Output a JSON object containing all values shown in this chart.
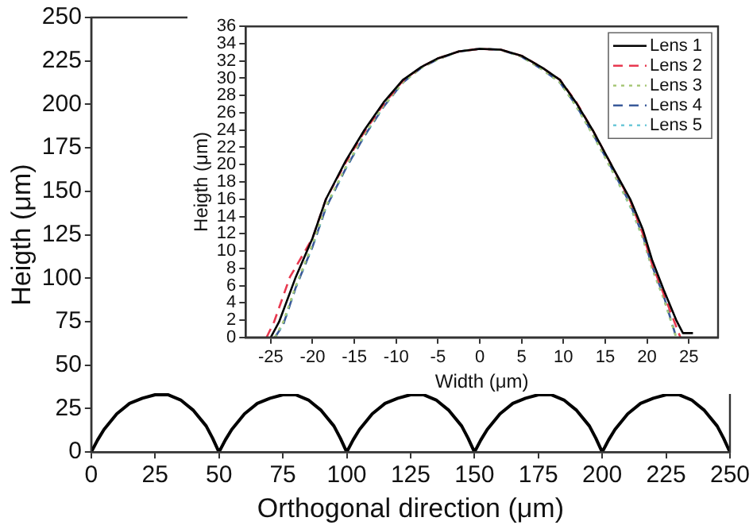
{
  "chart_data": [
    {
      "type": "line",
      "xlabel": "Orthogonal direction (μm)",
      "ylabel": "Heigth (μm)",
      "xlim": [
        0,
        250
      ],
      "ylim": [
        0,
        250
      ],
      "xticks": [
        0,
        25,
        50,
        75,
        100,
        125,
        150,
        175,
        200,
        225,
        250
      ],
      "yticks": [
        0,
        25,
        50,
        75,
        100,
        125,
        150,
        175,
        200,
        225,
        250
      ],
      "grid": false,
      "legend": false,
      "marker": "none",
      "line_style": "solid",
      "x": [
        0,
        2.5,
        5,
        10,
        15,
        20,
        25,
        30,
        35,
        40,
        45,
        47.5,
        50,
        52.5,
        55,
        60,
        65,
        70,
        75,
        80,
        85,
        90,
        95,
        97.5,
        100,
        102.5,
        105,
        110,
        115,
        120,
        125,
        130,
        135,
        140,
        145,
        147.5,
        150,
        152.5,
        155,
        160,
        165,
        170,
        175,
        180,
        185,
        190,
        195,
        197.5,
        200,
        202.5,
        205,
        210,
        215,
        220,
        225,
        230,
        235,
        240,
        245,
        247.5,
        250
      ],
      "series": [
        {
          "color": "#000000",
          "values": [
            0,
            7,
            13,
            22,
            28,
            31,
            33,
            33,
            30,
            24,
            15,
            8,
            0,
            7,
            13,
            22,
            28,
            31,
            33,
            33,
            30,
            24,
            15,
            8,
            0,
            7,
            13,
            22,
            28,
            31,
            33,
            33,
            30,
            24,
            15,
            8,
            0,
            7,
            13,
            22,
            28,
            31,
            33,
            33,
            30,
            24,
            15,
            8,
            0,
            7,
            13,
            22,
            28,
            31,
            33,
            33,
            30,
            24,
            15,
            8,
            0
          ]
        }
      ]
    },
    {
      "type": "line",
      "xlabel": "Width (μm)",
      "ylabel": "Heigth (μm)",
      "xlim": [
        -28,
        28.5
      ],
      "ylim": [
        0,
        36
      ],
      "xticks": [
        -25,
        -20,
        -15,
        -10,
        -5,
        0,
        5,
        10,
        15,
        20,
        25
      ],
      "yticks": [
        0,
        2,
        4,
        6,
        8,
        10,
        12,
        14,
        16,
        18,
        20,
        22,
        24,
        26,
        28,
        30,
        32,
        34,
        36
      ],
      "grid": false,
      "legend": "top right",
      "marker": "none",
      "series": [
        {
          "name": "Lens 1",
          "color": "#000000",
          "line_style": "solid",
          "x": [
            -25,
            -24,
            -22,
            -20,
            -18.4,
            -16,
            -13.8,
            -11.5,
            -9.2,
            -7,
            -5,
            -2.5,
            0,
            2.5,
            5,
            7.5,
            9.6,
            11.5,
            13.5,
            16,
            18,
            19.5,
            20.6,
            22,
            23.5,
            24.3,
            25.5
          ],
          "values": [
            0,
            1.8,
            7,
            11.5,
            16,
            20.5,
            24,
            27.2,
            29.8,
            31.3,
            32.3,
            33.1,
            33.4,
            33.3,
            32.6,
            31.2,
            29.8,
            27.2,
            24,
            19.5,
            16,
            12.5,
            9,
            5.5,
            2,
            0.5,
            0.5
          ]
        },
        {
          "name": "Lens 2",
          "color": "#e8384f",
          "line_style": "dashed",
          "x": [
            -25.5,
            -24.6,
            -22.7,
            -20,
            -18.4,
            -16,
            -13.8,
            -11.5,
            -9.2,
            -7,
            -5,
            -2.5,
            0,
            2.5,
            5,
            7.5,
            9.6,
            11.5,
            13.5,
            16,
            18,
            19.5,
            20.6,
            22,
            23,
            24
          ],
          "values": [
            0,
            1.8,
            7,
            11.5,
            16,
            20.3,
            23.8,
            27,
            29.7,
            31.3,
            32.3,
            33.1,
            33.4,
            33.3,
            32.6,
            31.2,
            29.8,
            27.3,
            24,
            19.5,
            15.8,
            12,
            8.5,
            5,
            2.5,
            0
          ]
        },
        {
          "name": "Lens 3",
          "color": "#a8c878",
          "line_style": "dotted",
          "x": [
            -24.5,
            -23.5,
            -22,
            -20,
            -18.4,
            -16,
            -13.8,
            -11.5,
            -9.2,
            -7,
            -5,
            -2.5,
            0,
            2.5,
            5,
            7.5,
            9.6,
            11.5,
            13.5,
            16,
            18,
            19.5,
            20.6,
            22,
            23.5
          ],
          "values": [
            0,
            1.8,
            6,
            10.8,
            15.2,
            19.8,
            23.5,
            26.8,
            29.5,
            31.2,
            32.2,
            33.1,
            33.4,
            33.3,
            32.5,
            31,
            29.5,
            26.8,
            23.5,
            19,
            15.2,
            11.5,
            8,
            4.5,
            0
          ]
        },
        {
          "name": "Lens 4",
          "color": "#3a5a9a",
          "line_style": "dashed",
          "x": [
            -24.5,
            -23.5,
            -22,
            -20,
            -18.4,
            -16,
            -13.8,
            -11.5,
            -9.2,
            -7,
            -5,
            -2.5,
            0,
            2.5,
            5,
            7.5,
            9.6,
            11.5,
            13.5,
            16,
            18,
            19.5,
            20.6,
            22,
            23.5
          ],
          "values": [
            0,
            1.5,
            5.8,
            10.5,
            15,
            19.6,
            23.3,
            26.7,
            29.5,
            31.2,
            32.2,
            33.1,
            33.4,
            33.3,
            32.5,
            31,
            29.5,
            26.9,
            23.6,
            19.2,
            15.4,
            11.8,
            8.3,
            4.8,
            0
          ]
        },
        {
          "name": "Lens 5",
          "color": "#6cc8d8",
          "line_style": "dotted",
          "x": [
            -24.5,
            -23.5,
            -22,
            -20,
            -18.4,
            -16,
            -13.8,
            -11.5,
            -9.2,
            -7,
            -5,
            -2.5,
            0,
            2.5,
            5,
            7.5,
            9.6,
            11.5,
            13.5,
            16,
            18,
            19.5,
            20.6,
            22,
            23.5
          ],
          "values": [
            0,
            1.5,
            5.8,
            10.5,
            15,
            19.6,
            23.3,
            26.7,
            29.5,
            31.2,
            32.2,
            33.1,
            33.4,
            33.3,
            32.5,
            31,
            29.5,
            26.8,
            23.5,
            19,
            15.1,
            11.5,
            8,
            4.5,
            0
          ]
        }
      ]
    }
  ]
}
